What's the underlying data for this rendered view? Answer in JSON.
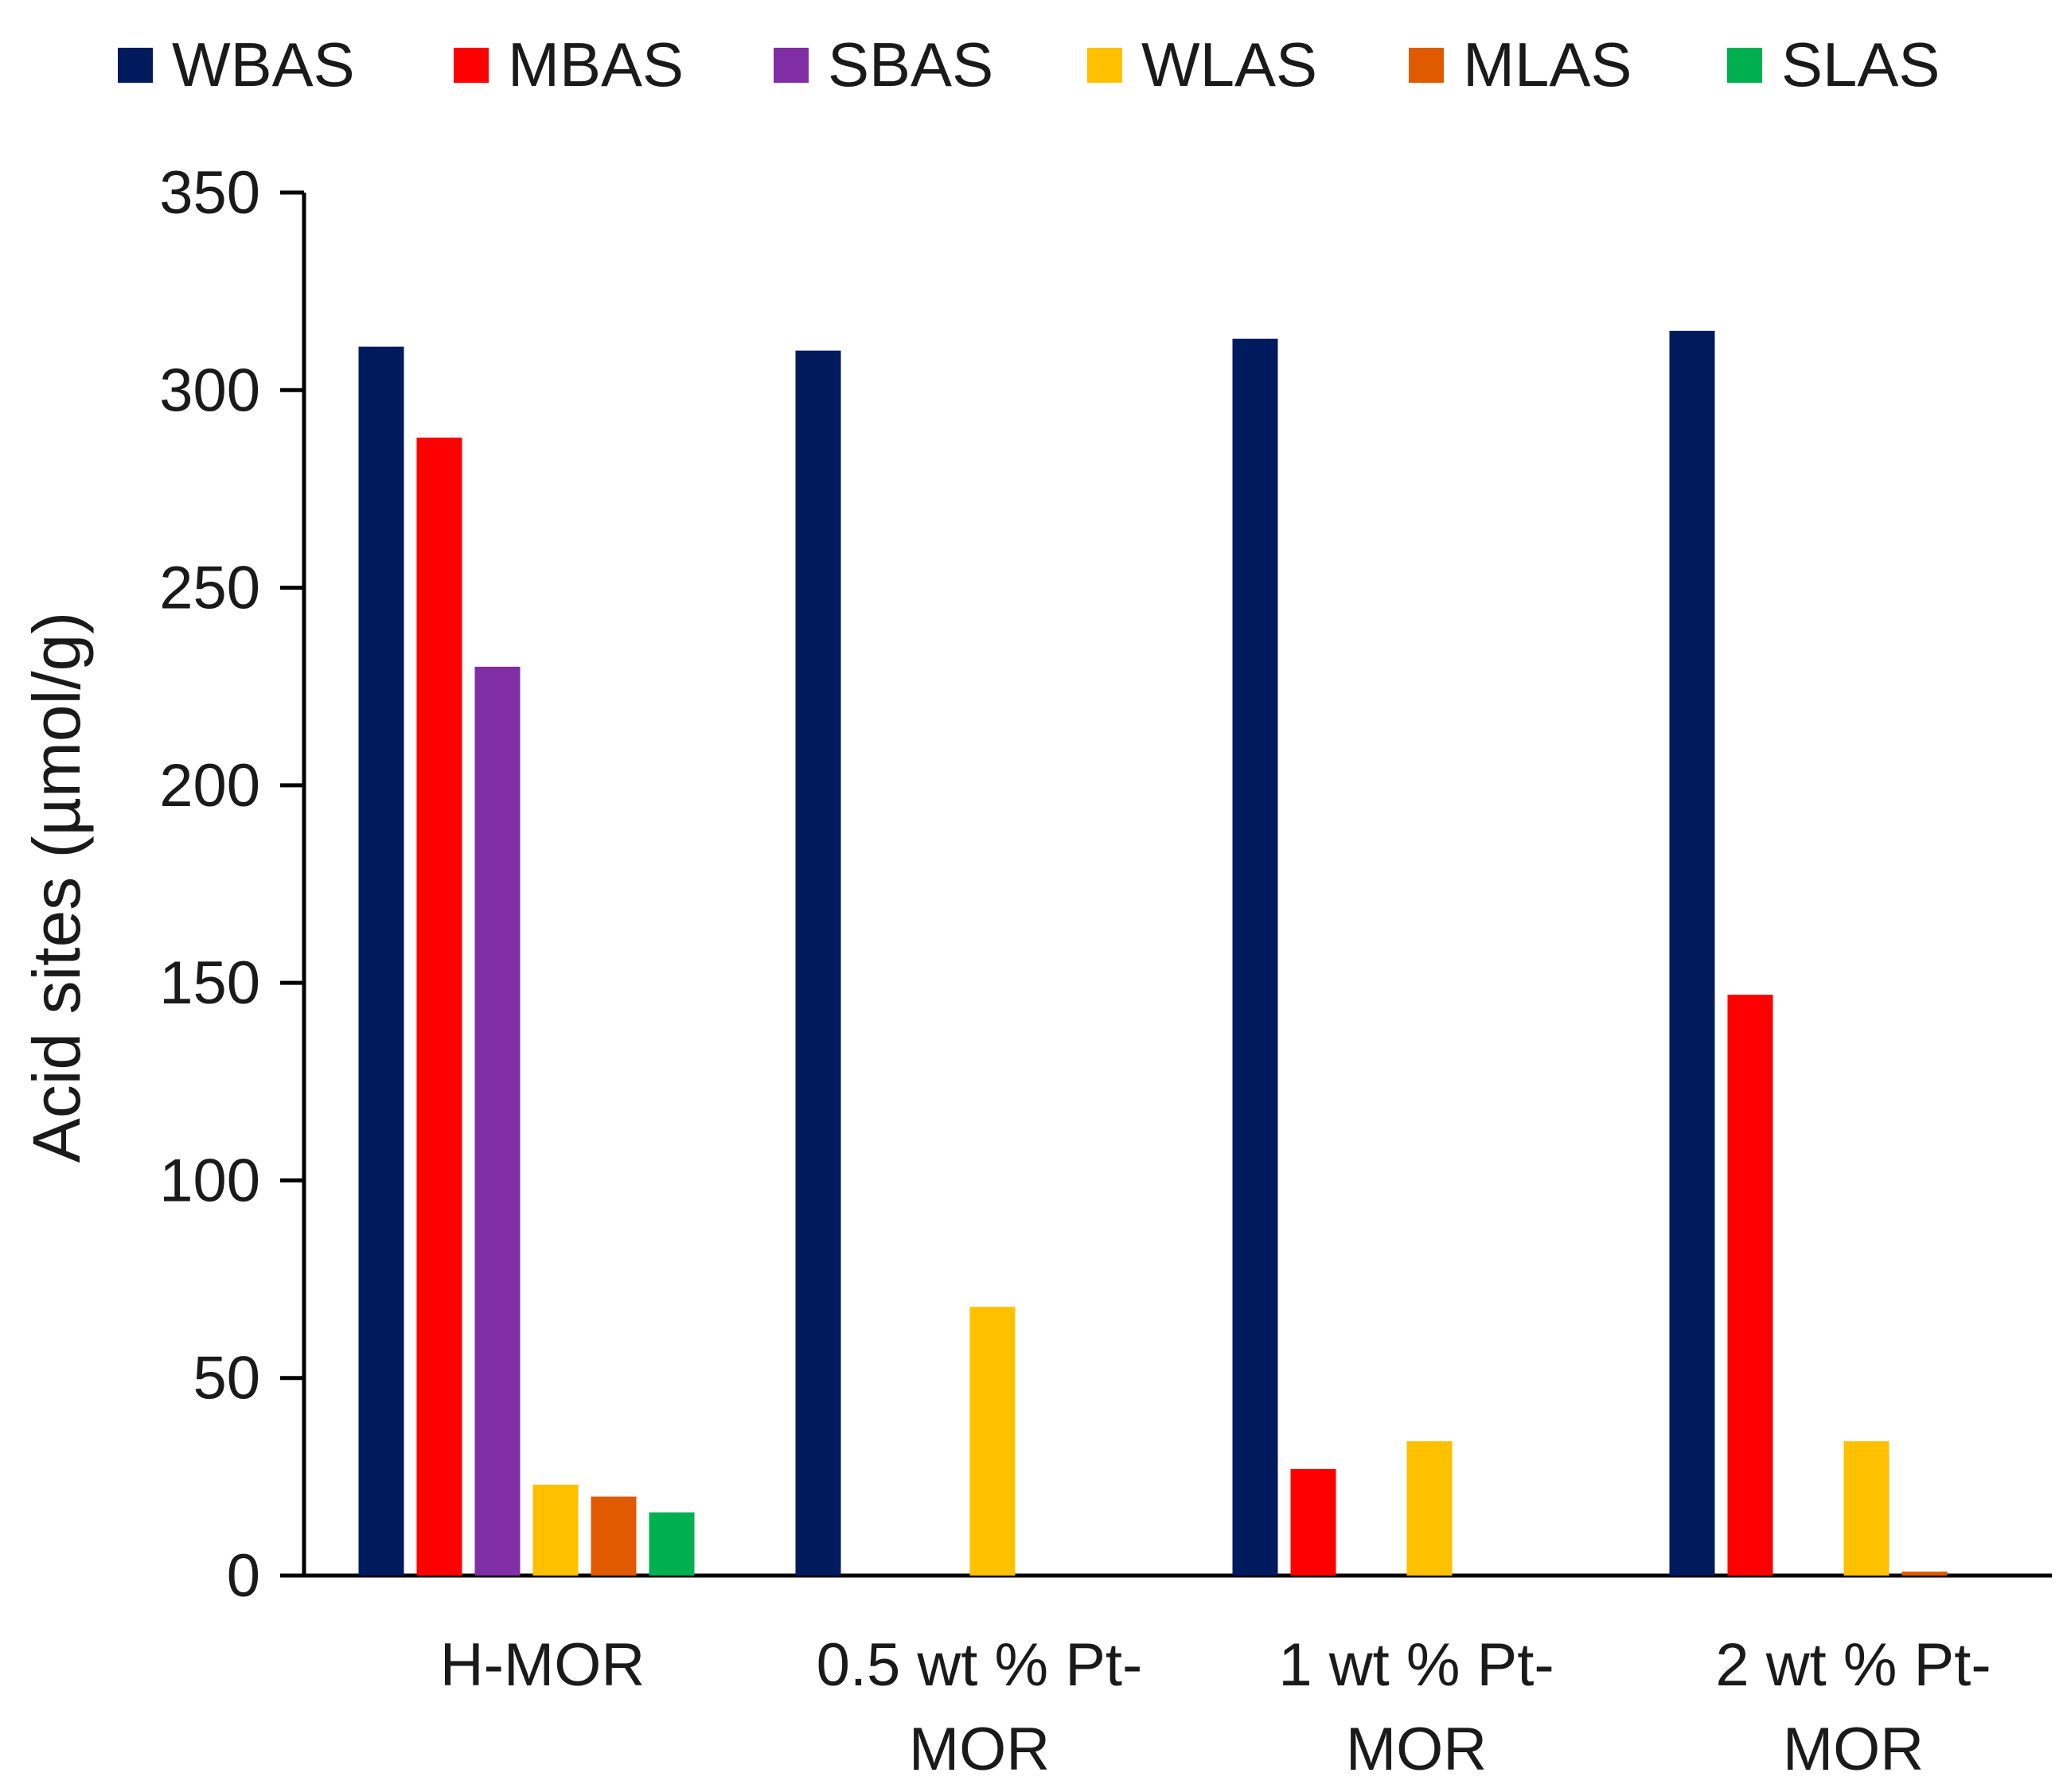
{
  "chart_data": {
    "type": "bar",
    "ylabel": "Acid sites (µmol/g)",
    "xlabel": "",
    "ylim": [
      0,
      350
    ],
    "yticks": [
      0,
      50,
      100,
      150,
      200,
      250,
      300,
      350
    ],
    "legend_position": "top",
    "grid": false,
    "categories": [
      [
        "H-MOR"
      ],
      [
        "0.5 wt % Pt-",
        "MOR"
      ],
      [
        "1 wt % Pt-",
        "MOR"
      ],
      [
        "2 wt % Pt-",
        "MOR"
      ]
    ],
    "series": [
      {
        "name": "WBAS",
        "color": "#001a5e",
        "values": [
          311,
          310,
          313,
          315
        ]
      },
      {
        "name": "MBAS",
        "color": "#ff0000",
        "values": [
          288,
          0,
          27,
          147
        ]
      },
      {
        "name": "SBAS",
        "color": "#7f2ea3",
        "values": [
          230,
          0,
          0,
          0
        ]
      },
      {
        "name": "WLAS",
        "color": "#ffc000",
        "values": [
          23,
          68,
          34,
          34
        ]
      },
      {
        "name": "MLAS",
        "color": "#e05a00",
        "values": [
          20,
          0,
          0,
          1
        ]
      },
      {
        "name": "SLAS",
        "color": "#00b050",
        "values": [
          16,
          0,
          0,
          0
        ]
      }
    ]
  }
}
